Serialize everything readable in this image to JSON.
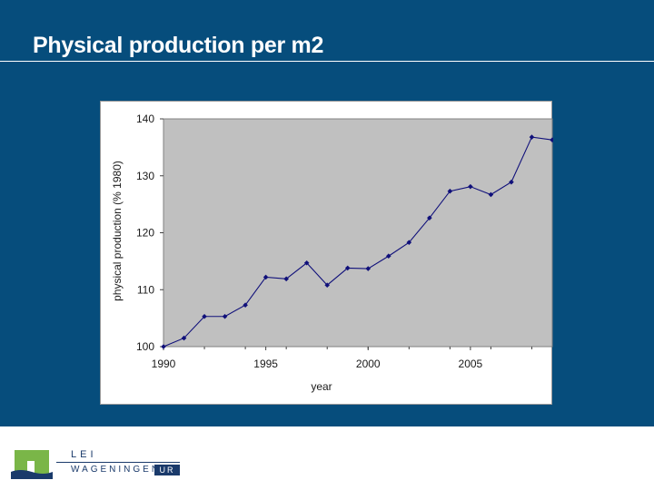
{
  "slide": {
    "title": "Physical production per m2"
  },
  "logo": {
    "line1": "LEI",
    "line2": "WAGENINGEN",
    "badge": "UR",
    "colors": {
      "green": "#7ab648",
      "navy": "#1a3a6b"
    }
  },
  "colors": {
    "background": "#064d7c",
    "plot_area": "#c0c0c0",
    "series": "#10107a"
  },
  "chart_data": {
    "type": "line",
    "title": "",
    "xlabel": "year",
    "ylabel": "physical production (% 1980)",
    "xlim": [
      1990,
      2009
    ],
    "ylim": [
      100,
      140
    ],
    "x_ticks": [
      1990,
      1995,
      2000,
      2005
    ],
    "y_ticks": [
      100,
      110,
      120,
      130,
      140
    ],
    "grid": false,
    "legend": "none",
    "series": [
      {
        "x": [
          1990,
          1991,
          1992,
          1993,
          1994,
          1995,
          1996,
          1997,
          1998,
          1999,
          2000,
          2001,
          2002,
          2003,
          2004,
          2005,
          2006,
          2007,
          2008,
          2009
        ],
        "y": [
          100,
          101.5,
          105.3,
          105.3,
          107.3,
          112.2,
          111.9,
          114.7,
          110.8,
          113.8,
          113.7,
          115.9,
          118.3,
          122.6,
          127.3,
          128.1,
          126.7,
          128.9,
          136.8,
          136.3
        ]
      }
    ]
  }
}
